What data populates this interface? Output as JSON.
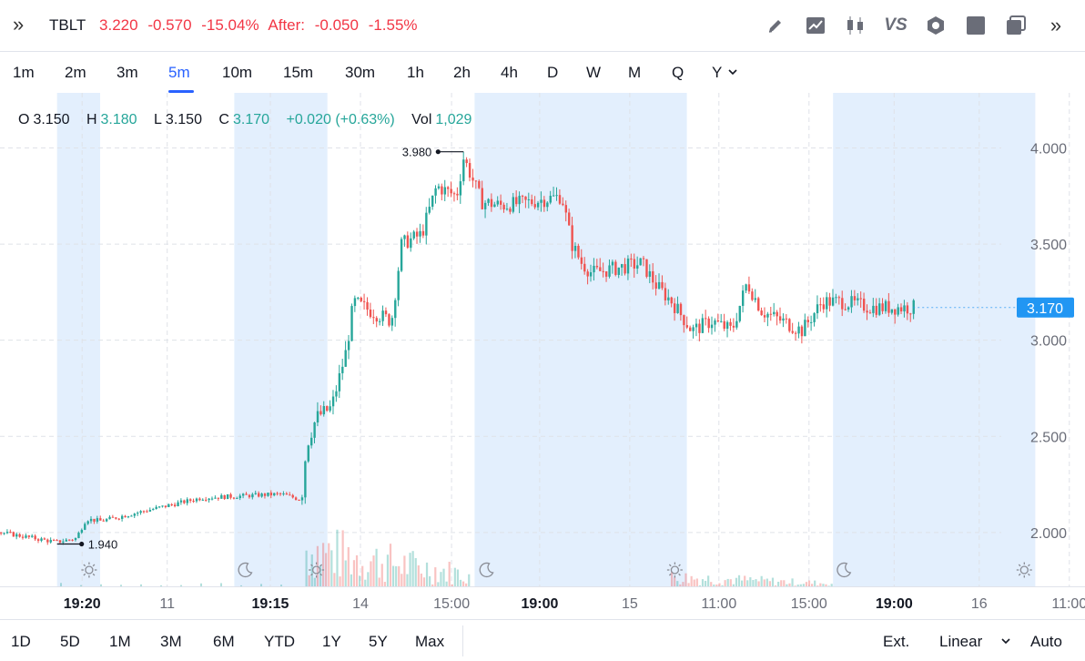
{
  "header": {
    "symbol": "TBLT",
    "last": "3.220",
    "change": "-0.570",
    "change_pct": "-15.04%",
    "after_label": "After:",
    "after_change": "-0.050",
    "after_pct": "-1.55%",
    "expand_icon": "double-chevron-right-icon",
    "tools": [
      "pencil-icon",
      "line-chart-icon",
      "candles-icon",
      "compare-vs-icon",
      "settings-hex-icon",
      "square-icon",
      "layers-icon",
      "double-chevron-right-icon"
    ],
    "vs_label": "VS"
  },
  "intervals": {
    "items": [
      "1m",
      "2m",
      "3m",
      "5m",
      "10m",
      "15m",
      "30m",
      "1h",
      "2h",
      "4h",
      "D",
      "W",
      "M",
      "Q",
      "Y"
    ],
    "active": "5m",
    "dropdown_icon": "chevron-down-icon"
  },
  "legend": {
    "o_label": "O",
    "o": "3.150",
    "h_label": "H",
    "h": "3.180",
    "l_label": "L",
    "l": "3.150",
    "c_label": "C",
    "c": "3.170",
    "change": "+0.020 (+0.63%)",
    "vol_label": "Vol",
    "vol": "1,029"
  },
  "colors": {
    "up": "#26a69a",
    "down": "#ef5350",
    "session_shade": "#e3effd",
    "price_tag": "#2196f3",
    "accent": "#2962ff"
  },
  "chart_data": {
    "type": "candlestick",
    "y_ticks": [
      "4.000",
      "3.500",
      "3.000",
      "2.500",
      "2.000"
    ],
    "ylim": [
      1.72,
      4.22
    ],
    "x_ticks": [
      {
        "label": "19:20",
        "x": 0.082,
        "bold": true
      },
      {
        "label": "11",
        "x": 0.167
      },
      {
        "label": "19:15",
        "x": 0.27,
        "bold": true
      },
      {
        "label": "14",
        "x": 0.36
      },
      {
        "label": "15:00",
        "x": 0.451
      },
      {
        "label": "19:00",
        "x": 0.539,
        "bold": true
      },
      {
        "label": "15",
        "x": 0.629
      },
      {
        "label": "11:00",
        "x": 0.718
      },
      {
        "label": "15:00",
        "x": 0.808
      },
      {
        "label": "19:00",
        "x": 0.893,
        "bold": true
      },
      {
        "label": "16",
        "x": 0.978
      },
      {
        "label": "11:00",
        "x": 1.068
      }
    ],
    "sessions": [
      {
        "start": 0.057,
        "end": 0.1,
        "icon": "sun-icon",
        "icon_x": 0.089
      },
      {
        "start": 0.234,
        "end": 0.327,
        "icon": "moon-icon",
        "icon_x": 0.245,
        "icon2": "sun-icon",
        "icon2_x": 0.316
      },
      {
        "start": 0.474,
        "end": 0.686,
        "icon": "moon-icon",
        "icon_x": 0.486,
        "icon2": "sun-icon",
        "icon2_x": 0.674
      },
      {
        "start": 0.832,
        "end": 1.034,
        "icon": "moon-icon",
        "icon_x": 0.843,
        "icon2": "sun-icon",
        "icon2_x": 1.023
      }
    ],
    "path": [
      [
        0.0,
        2.0
      ],
      [
        0.055,
        1.95
      ],
      [
        0.075,
        1.97
      ],
      [
        0.085,
        2.07
      ],
      [
        0.1,
        2.06
      ],
      [
        0.15,
        2.12
      ],
      [
        0.2,
        2.18
      ],
      [
        0.24,
        2.19
      ],
      [
        0.28,
        2.2
      ],
      [
        0.3,
        2.17
      ],
      [
        0.305,
        2.45
      ],
      [
        0.315,
        2.6
      ],
      [
        0.33,
        2.65
      ],
      [
        0.345,
        2.95
      ],
      [
        0.352,
        3.2
      ],
      [
        0.37,
        3.15
      ],
      [
        0.39,
        3.1
      ],
      [
        0.4,
        3.5
      ],
      [
        0.42,
        3.55
      ],
      [
        0.435,
        3.8
      ],
      [
        0.455,
        3.75
      ],
      [
        0.462,
        3.95
      ],
      [
        0.48,
        3.72
      ],
      [
        0.5,
        3.7
      ],
      [
        0.53,
        3.72
      ],
      [
        0.56,
        3.75
      ],
      [
        0.57,
        3.5
      ],
      [
        0.58,
        3.4
      ],
      [
        0.59,
        3.35
      ],
      [
        0.62,
        3.38
      ],
      [
        0.64,
        3.4
      ],
      [
        0.655,
        3.28
      ],
      [
        0.67,
        3.2
      ],
      [
        0.69,
        3.05
      ],
      [
        0.71,
        3.1
      ],
      [
        0.73,
        3.05
      ],
      [
        0.745,
        3.3
      ],
      [
        0.76,
        3.15
      ],
      [
        0.8,
        3.05
      ],
      [
        0.82,
        3.2
      ],
      [
        0.84,
        3.2
      ],
      [
        0.87,
        3.17
      ],
      [
        0.91,
        3.17
      ]
    ],
    "volume_clusters": [
      {
        "start": 0.305,
        "end": 0.47,
        "peak": 1.0
      },
      {
        "start": 0.67,
        "end": 0.83,
        "peak": 0.25
      }
    ],
    "max_label": "3.980",
    "max_x": 0.463,
    "max_y": 3.98,
    "min_label": "1.940",
    "min_x": 0.057,
    "min_y": 1.94,
    "last_price": "3.170",
    "last_value": 3.17,
    "last_x": 0.912
  },
  "bottom": {
    "ranges": [
      "1D",
      "5D",
      "1M",
      "3M",
      "6M",
      "YTD",
      "1Y",
      "5Y",
      "Max"
    ],
    "ext_label": "Ext.",
    "scale_label": "Linear",
    "auto_label": "Auto",
    "dropdown_icon": "chevron-down-icon"
  }
}
